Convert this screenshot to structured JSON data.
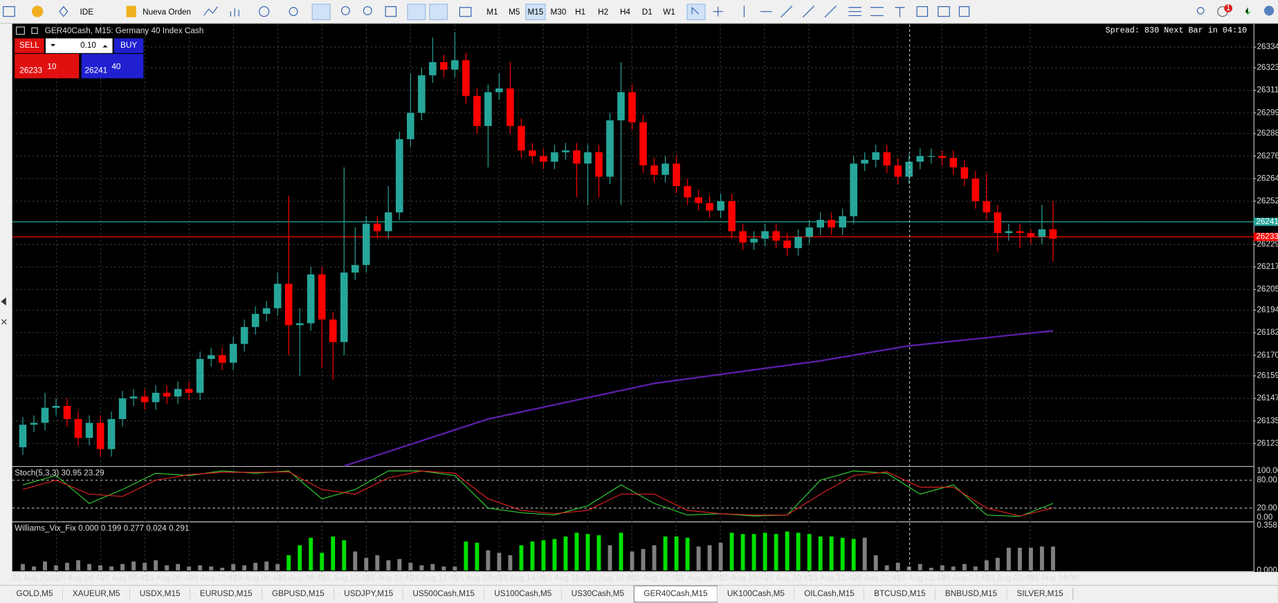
{
  "toolbar": {
    "ide": "IDE",
    "new_order": "Nueva Orden",
    "timeframes": [
      "M1",
      "M5",
      "M15",
      "M30",
      "H1",
      "H2",
      "H4",
      "D1",
      "W1"
    ],
    "active_timeframe": 2,
    "notifications": "1"
  },
  "trade_panel": {
    "sell": "SELL",
    "buy": "BUY",
    "volume": "0.10",
    "bid_big": "26233",
    "bid_small": "10",
    "ask_big": "26241",
    "ask_small": "40"
  },
  "tabs": {
    "items": [
      "GOLD,M5",
      "XAUEUR,M5",
      "USDX,M15",
      "EURUSD,M15",
      "GBPUSD,M15",
      "USDJPY,M15",
      "US500Cash,M15",
      "US100Cash,M5",
      "US30Cash,M5",
      "GER40Cash,M15",
      "UK100Cash,M5",
      "OILCash,M15",
      "BTCUSD,M15",
      "BNBUSD,M15",
      "SILVER,M15"
    ],
    "active": 9
  },
  "chart_data": {
    "type": "candlestick",
    "title": "GER40Cash, M15:  Germany 40 Index Cash",
    "info": "Spread: 830 Next Bar in 04:10",
    "up_color": "#26a69a",
    "down_color": "#ff0000",
    "grid": true,
    "ylim": [
      26111,
      26346
    ],
    "yticks": [
      26123,
      26135,
      26147,
      26159,
      26170,
      26182,
      26194,
      26205,
      26217,
      26229,
      26241,
      26252,
      26264,
      26276,
      26288,
      26299,
      26311,
      26323,
      26334
    ],
    "time_labels": [
      "25 Aug 2026",
      "25 Aug 04:45",
      "25 Aug 05:45",
      "25 Aug 06:45",
      "25 Aug 07:45",
      "25 Aug 08:45",
      "25 Aug 09:45",
      "25 Aug 10:45",
      "25 Aug 11:45",
      "25 Aug 12:45",
      "25 Aug 13:45",
      "25 Aug 14:45",
      "25 Aug 15:45",
      "25 Aug 16:45",
      "25 Aug 17:45",
      "25 Aug 18:45",
      "25 Aug 19:45",
      "25 Aug 20:45",
      "25 Aug 21:45",
      "25 Aug 22:45",
      "25 Aug 23:45",
      "26 Aug 01:45",
      "26 Aug 02:45",
      "26 Aug 04:00"
    ],
    "open": [
      26121,
      26133,
      26134,
      26142,
      26143,
      26136,
      26126,
      26134,
      26120,
      26136,
      26147,
      26148,
      26145,
      26150,
      26148,
      26152,
      26150,
      26168,
      26170,
      26166,
      26176,
      26185,
      26192,
      26195,
      26208,
      26186,
      26187,
      26213,
      26189,
      26177,
      26214,
      26218,
      26240,
      26236,
      26246,
      26285,
      26299,
      26319,
      26326,
      26322,
      26327,
      26308,
      26292,
      26310,
      26312,
      26292,
      26279,
      26276,
      26273,
      26278,
      26279,
      26272,
      26278,
      26265,
      26295,
      26310,
      26294,
      26271,
      26266,
      26272,
      26260,
      26254,
      26251,
      26247,
      26252,
      26236,
      26230,
      26232,
      26236,
      26231,
      26227,
      26233,
      26238,
      26242,
      26238,
      26244,
      26272,
      26274,
      26278,
      26271,
      26265,
      26273,
      26276,
      26276,
      26275,
      26270,
      26264,
      26252,
      26246,
      26235,
      26236,
      26235,
      26233,
      26237
    ],
    "high": [
      26137,
      26138,
      26150,
      26147,
      26147,
      26140,
      26138,
      26138,
      26140,
      26151,
      26152,
      26152,
      26154,
      26154,
      26156,
      26156,
      26172,
      26174,
      26174,
      26180,
      26189,
      26196,
      26199,
      26214,
      26255,
      26195,
      26217,
      26217,
      26193,
      26270,
      26238,
      26244,
      26244,
      26260,
      26289,
      26320,
      26323,
      26339,
      26330,
      26342,
      26331,
      26312,
      26314,
      26320,
      26326,
      26296,
      26283,
      26280,
      26282,
      26283,
      26283,
      26282,
      26282,
      26299,
      26326,
      26314,
      26298,
      26275,
      26276,
      26276,
      26264,
      26258,
      26255,
      26256,
      26256,
      26240,
      26236,
      26240,
      26240,
      26235,
      26237,
      26242,
      26246,
      26246,
      26248,
      26276,
      26278,
      26282,
      26282,
      26275,
      26277,
      26280,
      26280,
      26279,
      26279,
      26274,
      26268,
      26267,
      26250,
      26240,
      26240,
      26237,
      26250,
      26252
    ],
    "low": [
      26117,
      26129,
      26130,
      26138,
      26132,
      26122,
      26122,
      26116,
      26116,
      26132,
      26143,
      26141,
      26141,
      26144,
      26144,
      26146,
      26146,
      26164,
      26162,
      26162,
      26172,
      26181,
      26188,
      26191,
      26170,
      26159,
      26183,
      26163,
      26157,
      26170,
      26210,
      26214,
      26232,
      26232,
      26242,
      26281,
      26295,
      26315,
      26318,
      26318,
      26304,
      26288,
      26270,
      26306,
      26288,
      26275,
      26272,
      26269,
      26269,
      26274,
      26254,
      26250,
      26254,
      26261,
      26250,
      26290,
      26267,
      26262,
      26262,
      26256,
      26250,
      26247,
      26243,
      26243,
      26232,
      26226,
      26226,
      26228,
      26227,
      26223,
      26223,
      26229,
      26234,
      26234,
      26234,
      26240,
      26268,
      26270,
      26267,
      26261,
      26261,
      26269,
      26272,
      26271,
      26266,
      26260,
      26248,
      26242,
      26225,
      26231,
      26227,
      26229,
      26229,
      26220
    ],
    "close": [
      26133,
      26134,
      26142,
      26143,
      26136,
      26126,
      26134,
      26120,
      26136,
      26147,
      26148,
      26145,
      26150,
      26148,
      26152,
      26150,
      26168,
      26170,
      26166,
      26176,
      26185,
      26192,
      26195,
      26208,
      26186,
      26187,
      26213,
      26189,
      26177,
      26214,
      26218,
      26240,
      26236,
      26246,
      26285,
      26299,
      26319,
      26326,
      26322,
      26327,
      26308,
      26292,
      26310,
      26312,
      26292,
      26279,
      26276,
      26273,
      26278,
      26279,
      26272,
      26278,
      26265,
      26295,
      26310,
      26294,
      26271,
      26266,
      26272,
      26260,
      26254,
      26251,
      26247,
      26252,
      26236,
      26230,
      26232,
      26236,
      26231,
      26227,
      26233,
      26238,
      26242,
      26238,
      26244,
      26272,
      26274,
      26278,
      26271,
      26265,
      26273,
      26276,
      26276,
      26275,
      26270,
      26264,
      26252,
      26246,
      26235,
      26236,
      26235,
      26233,
      26237,
      26232
    ],
    "ask_line": {
      "value": 26241,
      "color": "#26a69a"
    },
    "bid_line": {
      "value": 26233,
      "color": "#ff0000"
    },
    "ma": {
      "color": "#5b1fa8",
      "x": [
        29,
        42,
        57,
        72,
        80,
        93
      ],
      "values": [
        26111,
        26136,
        26155,
        26167,
        26175,
        26183
      ]
    },
    "stoch": {
      "label": "Stoch(5,3,3) 30.95 23.29",
      "ylim": [
        0,
        100
      ],
      "yticks": [
        {
          "value": 100,
          "label": "100.00"
        },
        {
          "value": 80,
          "label": "80.00"
        },
        {
          "value": 20,
          "label": "20.00"
        },
        {
          "value": 0,
          "label": "0.00"
        }
      ],
      "x": [
        0,
        3,
        6,
        9,
        12,
        15,
        18,
        21,
        24,
        27,
        30,
        33,
        36,
        39,
        42,
        45,
        48,
        51,
        54,
        57,
        60,
        63,
        66,
        69,
        72,
        75,
        78,
        81,
        84,
        87,
        90,
        93
      ],
      "series": [
        {
          "color": "#33cc33",
          "values": [
            70,
            90,
            30,
            60,
            95,
            90,
            100,
            95,
            100,
            40,
            60,
            100,
            100,
            90,
            20,
            10,
            5,
            25,
            70,
            30,
            5,
            8,
            3,
            5,
            80,
            100,
            95,
            50,
            70,
            5,
            2,
            30
          ]
        },
        {
          "color": "#dd2222",
          "values": [
            60,
            80,
            50,
            45,
            80,
            92,
            97,
            97,
            98,
            60,
            50,
            85,
            100,
            95,
            40,
            15,
            8,
            15,
            50,
            50,
            15,
            8,
            5,
            5,
            50,
            90,
            98,
            65,
            65,
            20,
            3,
            20
          ]
        }
      ]
    },
    "wvf": {
      "label": "Williams_Vix_Fix 0.000 0.199 0.277 0.024 0.291",
      "ylim": [
        0,
        0.358
      ],
      "yticks": [
        {
          "value": 0.358,
          "label": "0.358"
        },
        {
          "value": 0,
          "label": "0.000"
        }
      ],
      "values": [
        0.05,
        0.03,
        0.07,
        0.04,
        0.06,
        0.08,
        0.05,
        0.04,
        0.03,
        0.05,
        0.07,
        0.06,
        0.08,
        0.04,
        0.05,
        0.03,
        0.04,
        0.03,
        0.02,
        0.05,
        0.04,
        0.06,
        0.07,
        0.05,
        0.12,
        0.2,
        0.26,
        0.14,
        0.27,
        0.24,
        0.15,
        0.1,
        0.12,
        0.08,
        0.09,
        0.06,
        0.04,
        0.05,
        0.03,
        0.03,
        0.23,
        0.22,
        0.16,
        0.14,
        0.12,
        0.2,
        0.23,
        0.24,
        0.25,
        0.27,
        0.3,
        0.29,
        0.28,
        0.2,
        0.3,
        0.15,
        0.17,
        0.2,
        0.27,
        0.27,
        0.26,
        0.19,
        0.2,
        0.22,
        0.3,
        0.29,
        0.29,
        0.3,
        0.29,
        0.31,
        0.3,
        0.29,
        0.27,
        0.27,
        0.26,
        0.25,
        0.26,
        0.12,
        0.04,
        0.06,
        0.03,
        0.05,
        0.02,
        0.04,
        0.03,
        0.05,
        0.03,
        0.08,
        0.1,
        0.18,
        0.18,
        0.18,
        0.19,
        0.19
      ],
      "colors": [
        "#808080",
        "#808080",
        "#808080",
        "#808080",
        "#808080",
        "#808080",
        "#808080",
        "#808080",
        "#808080",
        "#808080",
        "#808080",
        "#808080",
        "#808080",
        "#808080",
        "#808080",
        "#808080",
        "#808080",
        "#808080",
        "#808080",
        "#808080",
        "#808080",
        "#808080",
        "#808080",
        "#808080",
        "#00e000",
        "#00e000",
        "#00e000",
        "#00e000",
        "#00e000",
        "#00e000",
        "#808080",
        "#808080",
        "#808080",
        "#808080",
        "#808080",
        "#808080",
        "#808080",
        "#808080",
        "#808080",
        "#808080",
        "#00e000",
        "#00e000",
        "#808080",
        "#808080",
        "#808080",
        "#00e000",
        "#00e000",
        "#00e000",
        "#00e000",
        "#00e000",
        "#00e000",
        "#00e000",
        "#00e000",
        "#808080",
        "#00e000",
        "#808080",
        "#808080",
        "#808080",
        "#00e000",
        "#00e000",
        "#00e000",
        "#808080",
        "#808080",
        "#808080",
        "#00e000",
        "#00e000",
        "#00e000",
        "#00e000",
        "#00e000",
        "#00e000",
        "#00e000",
        "#00e000",
        "#00e000",
        "#00e000",
        "#00e000",
        "#00e000",
        "#808080",
        "#808080",
        "#808080",
        "#808080",
        "#808080",
        "#808080",
        "#808080",
        "#808080",
        "#808080",
        "#808080",
        "#808080",
        "#808080",
        "#808080",
        "#808080",
        "#808080",
        "#808080",
        "#808080",
        "#808080"
      ]
    }
  }
}
